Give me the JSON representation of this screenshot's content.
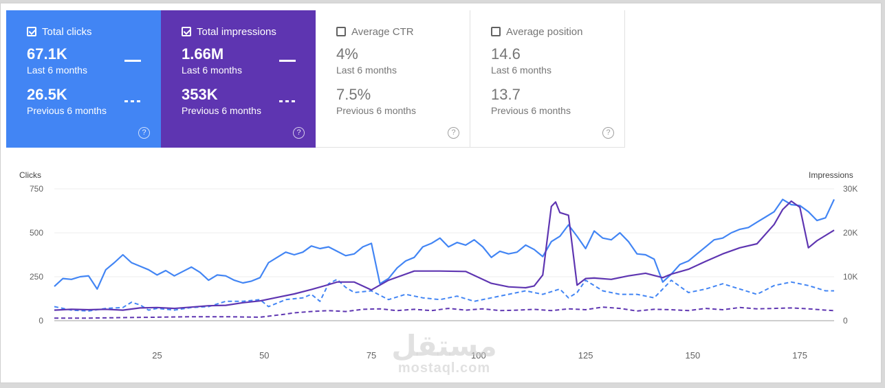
{
  "cards": [
    {
      "label": "Total clicks",
      "checked": true,
      "color": "#4285f4",
      "current_value": "67.1K",
      "current_period": "Last 6 months",
      "previous_value": "26.5K",
      "previous_period": "Previous 6 months"
    },
    {
      "label": "Total impressions",
      "checked": true,
      "color": "#5e35b1",
      "current_value": "1.66M",
      "current_period": "Last 6 months",
      "previous_value": "353K",
      "previous_period": "Previous 6 months"
    },
    {
      "label": "Average CTR",
      "checked": false,
      "current_value": "4%",
      "current_period": "Last 6 months",
      "previous_value": "7.5%",
      "previous_period": "Previous 6 months"
    },
    {
      "label": "Average position",
      "checked": false,
      "current_value": "14.6",
      "current_period": "Last 6 months",
      "previous_value": "13.7",
      "previous_period": "Previous 6 months"
    }
  ],
  "help_glyph": "?",
  "watermark": {
    "arabic": "مستقل",
    "latin": "mostaql.com"
  },
  "chart_data": {
    "type": "line",
    "ylabel_left": "Clicks",
    "ylabel_right": "Impressions",
    "left_ticks": [
      "750",
      "500",
      "250",
      "0"
    ],
    "right_ticks": [
      "30K",
      "20K",
      "10K",
      "0"
    ],
    "x_ticks": [
      25,
      50,
      75,
      100,
      125,
      150,
      175
    ],
    "xlim": [
      1,
      183
    ],
    "ylim_left": [
      0,
      750
    ],
    "ylim_right": [
      0,
      30000
    ],
    "grid": true,
    "colors": {
      "clicks": "#4285f4",
      "clicks_prev": "#4285f4",
      "impressions": "#5e35b1",
      "impressions_prev": "#5e35b1"
    },
    "series": [
      {
        "name": "Total clicks",
        "axis": "left",
        "dashed": false,
        "color": "#4285f4",
        "x": [
          1,
          3,
          5,
          7,
          9,
          11,
          13,
          15,
          17,
          19,
          21,
          23,
          25,
          27,
          29,
          31,
          33,
          35,
          37,
          39,
          41,
          43,
          45,
          47,
          49,
          51,
          53,
          55,
          57,
          59,
          61,
          63,
          65,
          67,
          69,
          71,
          73,
          75,
          77,
          79,
          81,
          83,
          85,
          87,
          89,
          91,
          93,
          95,
          97,
          99,
          101,
          103,
          105,
          107,
          109,
          111,
          113,
          115,
          117,
          119,
          121,
          123,
          125,
          127,
          129,
          131,
          133,
          135,
          137,
          139,
          141,
          143,
          145,
          147,
          149,
          151,
          153,
          155,
          157,
          159,
          161,
          163,
          165,
          167,
          169,
          171,
          173,
          175,
          177,
          179,
          181,
          183
        ],
        "y": [
          195,
          240,
          235,
          250,
          255,
          180,
          290,
          330,
          375,
          330,
          310,
          290,
          260,
          285,
          255,
          280,
          305,
          275,
          230,
          260,
          255,
          230,
          215,
          225,
          245,
          330,
          360,
          390,
          375,
          390,
          425,
          410,
          420,
          395,
          370,
          380,
          420,
          440,
          210,
          240,
          300,
          340,
          360,
          420,
          440,
          470,
          420,
          445,
          430,
          460,
          420,
          360,
          395,
          380,
          390,
          430,
          405,
          365,
          450,
          480,
          545,
          480,
          410,
          510,
          470,
          460,
          500,
          450,
          380,
          375,
          350,
          220,
          265,
          320,
          340,
          380,
          420,
          460,
          470,
          500,
          520,
          530,
          560,
          590,
          620,
          690,
          660,
          655,
          620,
          570,
          585,
          690
        ]
      },
      {
        "name": "Total impressions",
        "axis": "right",
        "dashed": false,
        "color": "#5e35b1",
        "x": [
          1,
          5,
          9,
          13,
          17,
          21,
          25,
          29,
          33,
          37,
          41,
          45,
          49,
          53,
          57,
          61,
          65,
          67,
          71,
          75,
          79,
          85,
          91,
          97,
          103,
          107,
          111,
          113,
          115,
          117,
          118,
          119,
          121,
          123,
          125,
          127,
          131,
          135,
          139,
          143,
          145,
          149,
          153,
          157,
          161,
          165,
          169,
          171,
          173,
          175,
          177,
          179,
          183
        ],
        "y": [
          2400,
          2600,
          2500,
          2600,
          2400,
          2900,
          3000,
          2800,
          3100,
          3400,
          3500,
          4100,
          4500,
          5300,
          6100,
          7100,
          8200,
          8800,
          8800,
          7000,
          9200,
          11300,
          11300,
          11200,
          8500,
          7700,
          7500,
          7900,
          10400,
          26000,
          27000,
          24600,
          24000,
          8100,
          9600,
          9700,
          9400,
          10200,
          10800,
          9800,
          10600,
          11700,
          13500,
          15200,
          16600,
          17500,
          21900,
          25300,
          27200,
          25800,
          16600,
          18200,
          20600
        ]
      },
      {
        "name": "Total clicks (previous)",
        "axis": "left",
        "dashed": true,
        "color": "#4285f4",
        "x": [
          1,
          5,
          9,
          13,
          17,
          19,
          21,
          23,
          25,
          29,
          33,
          37,
          41,
          45,
          49,
          51,
          55,
          59,
          61,
          63,
          65,
          67,
          69,
          71,
          75,
          79,
          83,
          87,
          91,
          95,
          99,
          103,
          107,
          111,
          115,
          119,
          121,
          123,
          125,
          129,
          133,
          137,
          141,
          145,
          149,
          153,
          157,
          161,
          165,
          169,
          173,
          177,
          181,
          183
        ],
        "y": [
          80,
          60,
          55,
          70,
          75,
          105,
          90,
          60,
          70,
          60,
          75,
          80,
          110,
          110,
          120,
          80,
          120,
          130,
          150,
          110,
          210,
          235,
          190,
          160,
          170,
          120,
          150,
          130,
          120,
          140,
          110,
          130,
          150,
          170,
          150,
          180,
          130,
          160,
          230,
          170,
          150,
          150,
          130,
          230,
          160,
          180,
          210,
          180,
          150,
          200,
          220,
          200,
          170,
          170
        ]
      },
      {
        "name": "Total impressions (previous)",
        "axis": "right",
        "dashed": true,
        "color": "#5e35b1",
        "x": [
          1,
          9,
          17,
          25,
          33,
          41,
          49,
          55,
          57,
          61,
          65,
          69,
          73,
          77,
          81,
          85,
          89,
          93,
          97,
          101,
          105,
          109,
          113,
          117,
          121,
          125,
          129,
          133,
          137,
          141,
          145,
          149,
          153,
          157,
          161,
          165,
          169,
          173,
          177,
          181,
          183
        ],
        "y": [
          600,
          600,
          700,
          800,
          900,
          900,
          800,
          1500,
          1800,
          2100,
          2300,
          2100,
          2600,
          2700,
          2300,
          2600,
          2300,
          2800,
          2400,
          2700,
          2300,
          2400,
          2600,
          2300,
          2700,
          2500,
          3100,
          2800,
          2200,
          2600,
          2500,
          2300,
          2800,
          2500,
          3000,
          2700,
          2800,
          2900,
          2700,
          2400,
          2300
        ]
      }
    ]
  }
}
